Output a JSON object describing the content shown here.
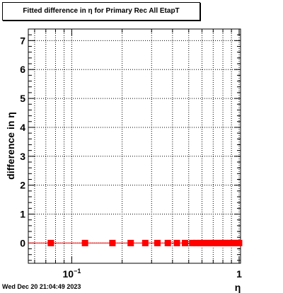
{
  "chart_data": {
    "type": "scatter",
    "title": "Fitted difference in  η for Primary Rec All EtapT",
    "xlabel": "η",
    "ylabel": "difference in  η",
    "xscale": "log",
    "xlim": [
      0.055,
      1.02
    ],
    "ylim": [
      -0.7,
      7.4
    ],
    "yticks": [
      0,
      1,
      2,
      3,
      4,
      5,
      6,
      7
    ],
    "xtick_labels": [
      {
        "value": 0.1,
        "label": "10",
        "exp": "−1"
      },
      {
        "value": 1,
        "label": "1",
        "exp": ""
      }
    ],
    "grid": true,
    "series": [
      {
        "color": "#ff0000",
        "marker": "square",
        "line": true,
        "points": [
          {
            "x": 0.075,
            "y": 0
          },
          {
            "x": 0.12,
            "y": 0
          },
          {
            "x": 0.175,
            "y": 0
          },
          {
            "x": 0.225,
            "y": 0
          },
          {
            "x": 0.275,
            "y": 0
          },
          {
            "x": 0.325,
            "y": 0
          },
          {
            "x": 0.375,
            "y": 0
          },
          {
            "x": 0.425,
            "y": 0
          },
          {
            "x": 0.475,
            "y": 0
          },
          {
            "x": 0.525,
            "y": 0
          },
          {
            "x": 0.555,
            "y": 0
          },
          {
            "x": 0.585,
            "y": 0
          },
          {
            "x": 0.615,
            "y": 0
          },
          {
            "x": 0.645,
            "y": 0
          },
          {
            "x": 0.675,
            "y": 0
          },
          {
            "x": 0.705,
            "y": 0
          },
          {
            "x": 0.735,
            "y": 0
          },
          {
            "x": 0.765,
            "y": 0
          },
          {
            "x": 0.795,
            "y": 0
          },
          {
            "x": 0.825,
            "y": 0
          },
          {
            "x": 0.855,
            "y": 0
          },
          {
            "x": 0.885,
            "y": 0
          },
          {
            "x": 0.915,
            "y": 0
          },
          {
            "x": 0.945,
            "y": 0
          },
          {
            "x": 0.975,
            "y": 0
          },
          {
            "x": 1.0,
            "y": 0
          }
        ]
      }
    ]
  },
  "footer": "Wed Dec 20 21:04:49 2023"
}
